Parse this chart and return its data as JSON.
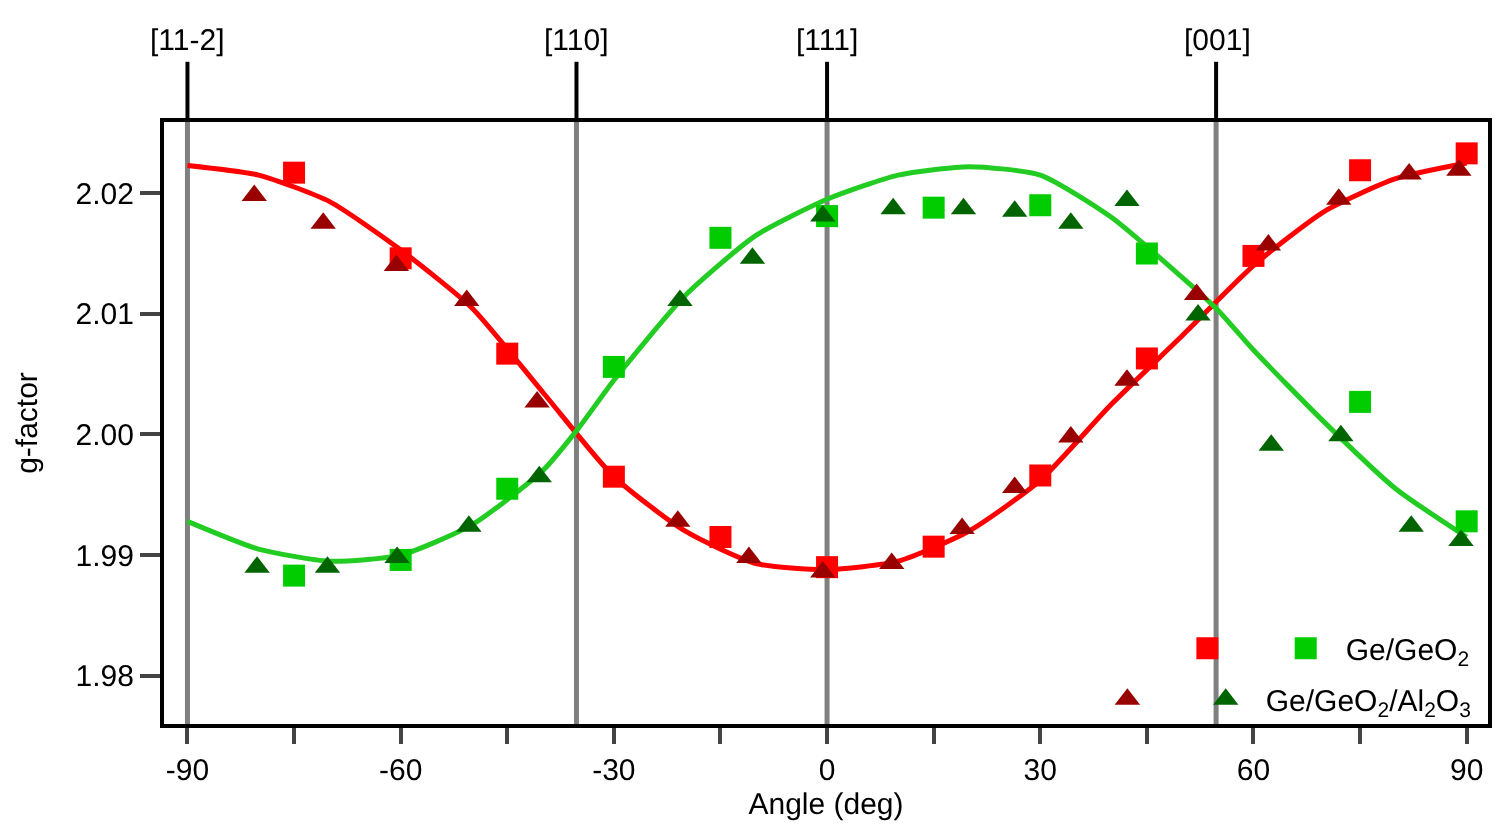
{
  "chart_data": {
    "type": "scatter",
    "xlabel": "Angle (deg)",
    "ylabel": "g-factor",
    "xlim": [
      -93.3,
      93.0
    ],
    "ylim": [
      1.976,
      2.0259
    ],
    "xticks": [
      -90,
      {
        "value": -75,
        "label": null
      },
      -60,
      {
        "value": -45,
        "label": null
      },
      -30,
      {
        "value": -15,
        "label": null
      },
      0,
      {
        "value": 15,
        "label": null
      },
      30,
      {
        "value": 45,
        "label": null
      },
      60,
      {
        "value": 75,
        "label": null
      },
      90
    ],
    "yticks": [
      1.98,
      1.99,
      {
        "value": 2.0,
        "label": "2.00"
      },
      2.01,
      2.02
    ],
    "ref_lines": [
      {
        "axis": "x",
        "value": -90,
        "color": "#808080"
      },
      {
        "axis": "x",
        "value": -35.26,
        "color": "#808080"
      },
      {
        "axis": "x",
        "value": 0,
        "color": "#808080"
      },
      {
        "axis": "x",
        "value": 54.74,
        "color": "#808080"
      }
    ],
    "annotations": [
      {
        "text": "[11-2]",
        "x": -90
      },
      {
        "text": "[110]",
        "x": -35.26
      },
      {
        "text": "[111]",
        "x": 0
      },
      {
        "text": "[001]",
        "x": 54.74
      }
    ],
    "grid": false,
    "legend": "bottom right",
    "series": [
      {
        "type": "line",
        "color": "#ff0000",
        "x": [
          -90,
          -80,
          -70,
          -60,
          -50,
          -40,
          -30,
          -20,
          -10,
          0,
          10,
          20,
          30,
          40,
          50,
          60,
          70,
          80,
          90
        ],
        "values": [
          2.0223,
          2.0215,
          2.0193,
          2.0153,
          2.0105,
          2.0035,
          1.9965,
          1.992,
          1.9893,
          1.9888,
          1.9895,
          1.992,
          1.9962,
          2.0025,
          2.0082,
          2.014,
          2.0185,
          2.0212,
          2.0225
        ]
      },
      {
        "type": "line",
        "color": "#22cc22",
        "x": [
          -90,
          -80,
          -70,
          -60,
          -50,
          -40,
          -35,
          -30,
          -20,
          -10,
          0,
          10,
          20,
          30,
          40,
          50,
          55,
          60,
          70,
          80,
          90
        ],
        "values": [
          1.9928,
          1.9905,
          1.9895,
          1.99,
          1.9925,
          1.997,
          2.0005,
          2.0045,
          2.0115,
          2.0165,
          2.0195,
          2.0215,
          2.0222,
          2.0215,
          2.018,
          2.013,
          2.0103,
          2.007,
          2.001,
          1.9955,
          1.9915
        ]
      },
      {
        "marker": "square",
        "color": "#ff0000",
        "x": [
          -75,
          -60,
          -45,
          -30,
          -15,
          0,
          15,
          30,
          45,
          60,
          75,
          90
        ],
        "values": [
          2.0217,
          2.0146,
          2.0067,
          1.9965,
          1.9915,
          1.989,
          1.9907,
          1.9966,
          2.0063,
          2.0148,
          2.0219,
          2.0233
        ]
      },
      {
        "name": "Ge/GeO$_{2}$",
        "marker": "square",
        "color": "#00cc00",
        "x": [
          -75,
          -60,
          -45,
          -30,
          -15,
          0,
          15,
          30,
          45,
          75,
          90
        ],
        "values": [
          1.9883,
          1.9896,
          1.9955,
          2.0056,
          2.0163,
          2.0181,
          2.0188,
          2.019,
          2.015,
          2.0027,
          1.9928
        ]
      },
      {
        "marker": "triangle",
        "color": "#990000",
        "x": [
          -80.6,
          -70.9,
          -60.6,
          -50.7,
          -40.8,
          -21,
          -11,
          -0.6,
          9.1,
          19,
          26.4,
          34.3,
          42.2,
          52,
          62.1,
          72,
          81.9,
          88.9
        ],
        "values": [
          2.0198,
          2.0175,
          2.014,
          2.0111,
          2.0027,
          1.9928,
          1.9898,
          1.9886,
          1.9893,
          1.9922,
          1.9956,
          1.9998,
          2.0045,
          2.0116,
          2.0157,
          2.0195,
          2.0216,
          2.0219
        ]
      },
      {
        "name": "Ge/GeO$_{2}$/Al$_{2}$O$_{3}$",
        "marker": "triangle",
        "color": "#006400",
        "x": [
          -80.2,
          -70.3,
          -60.5,
          -50.4,
          -40.5,
          -20.7,
          -10.5,
          -0.6,
          9.3,
          19.2,
          26.4,
          34.3,
          42.2,
          52.2,
          62.5,
          72.3,
          82.2,
          89.2
        ],
        "values": [
          1.989,
          1.989,
          1.9898,
          1.9924,
          1.9965,
          2.0111,
          2.0146,
          2.0181,
          2.0187,
          2.0187,
          2.0185,
          2.0175,
          2.0194,
          2.0099,
          1.9991,
          1.9999,
          1.9924,
          1.9912
        ]
      }
    ]
  }
}
